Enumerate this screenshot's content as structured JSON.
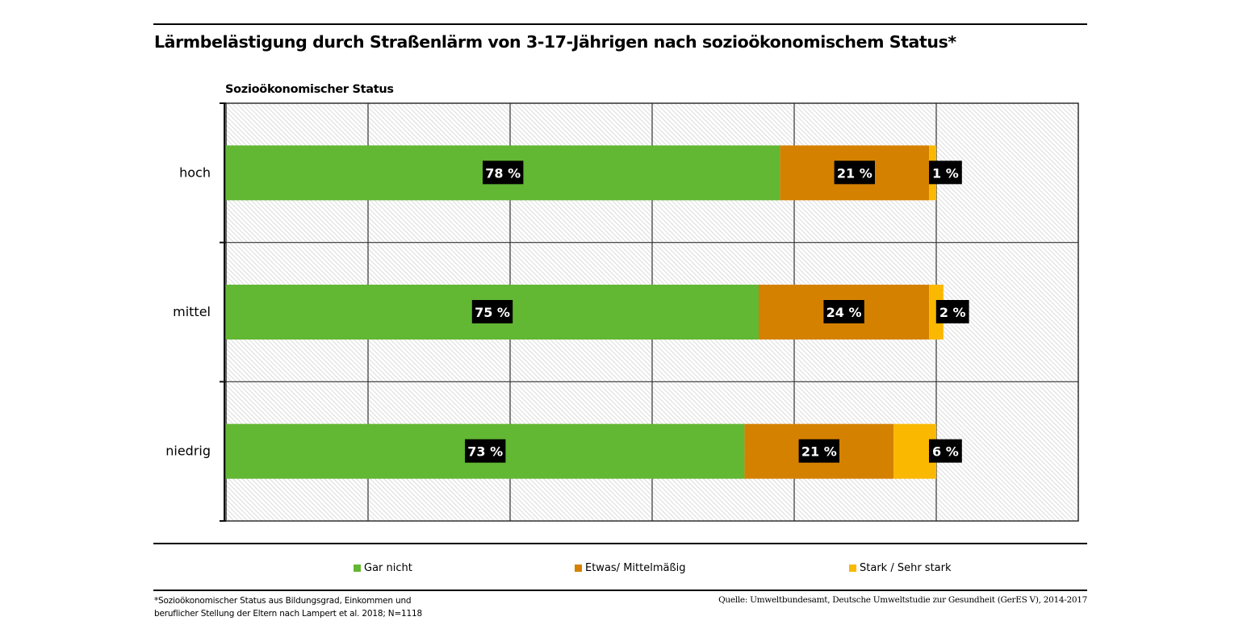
{
  "chart_data": {
    "type": "bar",
    "orientation": "horizontal",
    "stacked": true,
    "title": "Lärmbelästigung durch Straßenlärm von 3-17-Jährigen nach sozioökonomischem Status*",
    "ylabel": "Sozioökonomischer Status",
    "xlabel": "",
    "xlim": [
      0,
      120
    ],
    "grid_step": 20,
    "grid": true,
    "legend_position": "bottom",
    "categories": [
      "hoch",
      "mittel",
      "niedrig"
    ],
    "series": [
      {
        "name": "Gar nicht",
        "color": "#62b733",
        "values": [
          78,
          75,
          73
        ],
        "labels": [
          "78 %",
          "75 %",
          "73 %"
        ]
      },
      {
        "name": "Etwas/ Mittelmäßig",
        "color": "#d58100",
        "values": [
          21,
          24,
          21
        ],
        "labels": [
          "21 %",
          "24 %",
          "21 %"
        ]
      },
      {
        "name": "Stark / Sehr stark",
        "color": "#fab800",
        "values": [
          1,
          2,
          6
        ],
        "labels": [
          "1 %",
          "2 %",
          "6 %"
        ]
      }
    ]
  },
  "footnote": {
    "line1": "*Sozioökonomischer Status aus Bildungsgrad, Einkommen und",
    "line2": "beruflicher Stellung der Eltern nach Lampert et al. 2018; N=1118"
  },
  "source": "Quelle: Umweltbundesamt, Deutsche Umweltstudie zur Gesundheit (GerES V), 2014-2017"
}
